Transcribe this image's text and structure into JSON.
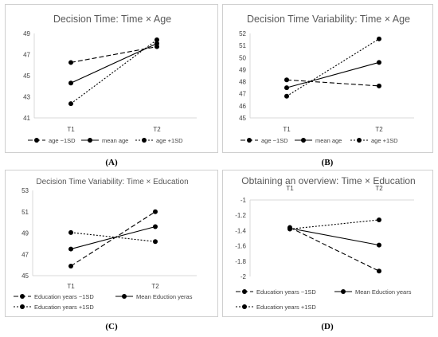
{
  "colors": {
    "axis": "#d9d9d9",
    "text": "#404040",
    "title": "#595959",
    "line": "#000000"
  },
  "panel_labels": [
    "(A)",
    "(B)",
    "(C)",
    "(D)"
  ],
  "chart_data": [
    {
      "type": "line",
      "title": "Decision Time: Time × Age",
      "categories": [
        "T1",
        "T2"
      ],
      "ylim": [
        41,
        49
      ],
      "yticks": [
        "41",
        "43",
        "45",
        "47",
        "49"
      ],
      "grid": false,
      "legend_position": "bottom",
      "series": [
        {
          "name": "age −1SD",
          "style": "long-dash",
          "values": [
            46.25,
            47.75
          ]
        },
        {
          "name": "mean age",
          "style": "solid",
          "values": [
            44.3,
            48.05
          ]
        },
        {
          "name": "age +1SD",
          "style": "dotted",
          "values": [
            42.35,
            48.4
          ]
        }
      ]
    },
    {
      "type": "line",
      "title": "Decision Time Variability: Time × Age",
      "categories": [
        "T1",
        "T2"
      ],
      "ylim": [
        45,
        52
      ],
      "yticks": [
        "45",
        "46",
        "47",
        "48",
        "49",
        "50",
        "51",
        "52"
      ],
      "grid": false,
      "legend_position": "bottom",
      "series": [
        {
          "name": "age −1SD",
          "style": "long-dash",
          "values": [
            48.15,
            47.65
          ]
        },
        {
          "name": "mean age",
          "style": "solid",
          "values": [
            47.5,
            49.6
          ]
        },
        {
          "name": "age +1SD",
          "style": "dotted",
          "values": [
            46.8,
            51.55
          ]
        }
      ]
    },
    {
      "type": "line",
      "title": "Decision Time Variability: Time × Education",
      "categories": [
        "T1",
        "T2"
      ],
      "ylim": [
        45,
        53
      ],
      "yticks": [
        "45",
        "47",
        "49",
        "51",
        "53"
      ],
      "grid": false,
      "legend_position": "bottom",
      "series": [
        {
          "name": "Education years −1SD",
          "style": "long-dash",
          "values": [
            45.9,
            51.0
          ]
        },
        {
          "name": "Mean Eduction yeras",
          "style": "solid",
          "values": [
            47.5,
            49.6
          ]
        },
        {
          "name": "Education years +1SD",
          "style": "dotted",
          "values": [
            49.05,
            48.2
          ]
        }
      ]
    },
    {
      "type": "line",
      "title": "Obtaining an overview: Time × Education",
      "categories": [
        "T1",
        "T2"
      ],
      "ylim": [
        -2,
        -1
      ],
      "yticks": [
        "-1",
        "-1.2",
        "-1.4",
        "-1.6",
        "-1.8",
        "-2"
      ],
      "x_axis_position": "top",
      "grid": false,
      "legend_position": "bottom",
      "series": [
        {
          "name": "Education years −1SD",
          "style": "long-dash",
          "values": [
            -1.36,
            -1.93
          ]
        },
        {
          "name": "Mean Eduction years",
          "style": "solid",
          "values": [
            -1.37,
            -1.59
          ]
        },
        {
          "name": "Education years +1SD",
          "style": "dotted",
          "values": [
            -1.38,
            -1.26
          ]
        }
      ]
    }
  ]
}
